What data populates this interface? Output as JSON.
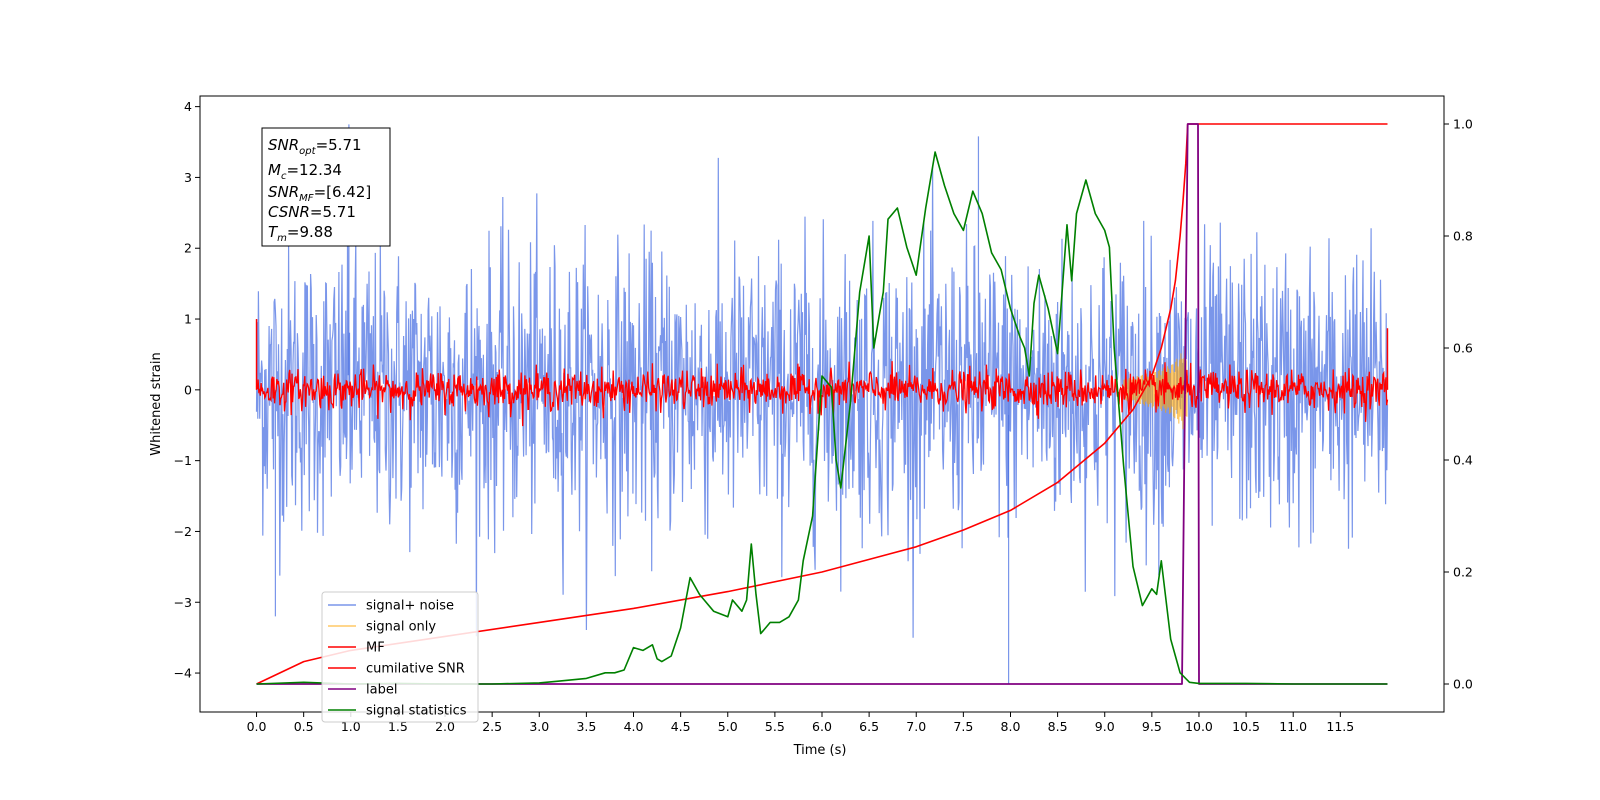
{
  "chart_data": {
    "type": "line",
    "xlabel": "Time (s)",
    "ylabel": "Whitened strain",
    "xlim": [
      -0.6,
      12.6
    ],
    "ylim": [
      -4.55,
      4.15
    ],
    "y2lim": [
      -0.05,
      1.05
    ],
    "x_ticks": [
      0.0,
      0.5,
      1.0,
      1.5,
      2.0,
      2.5,
      3.0,
      3.5,
      4.0,
      4.5,
      5.0,
      5.5,
      6.0,
      6.5,
      7.0,
      7.5,
      8.0,
      8.5,
      9.0,
      9.5,
      10.0,
      10.5,
      11.0,
      11.5
    ],
    "x_tick_labels": [
      "0.0",
      "0.5",
      "1.0",
      "1.5",
      "2.0",
      "2.5",
      "3.0",
      "3.5",
      "4.0",
      "4.5",
      "5.0",
      "5.5",
      "6.0",
      "6.5",
      "7.0",
      "7.5",
      "8.0",
      "8.5",
      "9.0",
      "9.5",
      "10.0",
      "10.5",
      "11.0",
      "11.5"
    ],
    "y_ticks": [
      -4,
      -3,
      -2,
      -1,
      0,
      1,
      2,
      3,
      4
    ],
    "y_tick_labels": [
      "−4",
      "−3",
      "−2",
      "−1",
      "0",
      "1",
      "2",
      "3",
      "4"
    ],
    "y2_ticks": [
      0.0,
      0.2,
      0.4,
      0.6,
      0.8,
      1.0
    ],
    "y2_tick_labels": [
      "0.0",
      "0.2",
      "0.4",
      "0.6",
      "0.8",
      "1.0"
    ],
    "annotation": {
      "snr_opt": "5.71",
      "mc": "12.34",
      "snr_mf": "[6.42]",
      "csnr": "5.71",
      "tm": "9.88"
    },
    "legend_position": "lower-left",
    "legend": [
      {
        "label": "signal+ noise",
        "color": "#4169e1"
      },
      {
        "label": "signal only",
        "color": "#ffa500"
      },
      {
        "label": "MF",
        "color": "#ff0000"
      },
      {
        "label": "cumilative SNR",
        "color": "#ff0000"
      },
      {
        "label": "label",
        "color": "#800080"
      },
      {
        "label": "signal statistics",
        "color": "#008000"
      }
    ],
    "series": [
      {
        "name": "signal+ noise",
        "color": "#4169e1",
        "axis": "left",
        "x_range": [
          0.0,
          12.0
        ],
        "typical_amplitude": 2.2,
        "peak_values": [
          {
            "x": 0.98,
            "y": 3.75
          },
          {
            "x": 7.66,
            "y": 3.58
          },
          {
            "x": 0.2,
            "y": -3.2
          },
          {
            "x": 7.98,
            "y": -4.15
          }
        ]
      },
      {
        "name": "signal only",
        "color": "#ffa500",
        "axis": "left",
        "x": [
          9.2,
          9.5,
          9.7,
          9.8,
          9.85,
          9.88
        ],
        "amplitude": [
          0.15,
          0.25,
          0.35,
          0.5,
          0.6,
          0.3
        ]
      },
      {
        "name": "MF",
        "color": "#ff0000",
        "axis": "left",
        "x_range": [
          0.0,
          12.0
        ],
        "typical_amplitude": 0.3,
        "peak_values": [
          {
            "x": 0.0,
            "y": 1.0
          },
          {
            "x": 12.0,
            "y": 0.87
          }
        ]
      },
      {
        "name": "cumilative SNR",
        "color": "#ff0000",
        "axis": "right",
        "x": [
          0.0,
          0.5,
          1.0,
          2.0,
          3.0,
          4.0,
          5.0,
          6.0,
          7.0,
          7.5,
          8.0,
          8.5,
          9.0,
          9.3,
          9.5,
          9.6,
          9.7,
          9.75,
          9.8,
          9.83,
          9.86,
          9.88,
          10.0,
          11.0,
          12.0
        ],
        "values": [
          0.0,
          0.04,
          0.06,
          0.085,
          0.11,
          0.135,
          0.165,
          0.2,
          0.245,
          0.275,
          0.31,
          0.36,
          0.43,
          0.49,
          0.55,
          0.6,
          0.67,
          0.72,
          0.8,
          0.86,
          0.93,
          1.0,
          1.0,
          1.0,
          1.0
        ]
      },
      {
        "name": "label",
        "color": "#800080",
        "axis": "right",
        "x": [
          0.0,
          9.82,
          9.88,
          9.99,
          10.0,
          12.0
        ],
        "values": [
          0.0,
          0.0,
          1.0,
          1.0,
          0.0,
          0.0
        ]
      },
      {
        "name": "signal statistics",
        "color": "#008000",
        "axis": "right",
        "x": [
          0.0,
          0.5,
          1.0,
          1.5,
          2.0,
          2.5,
          3.0,
          3.2,
          3.5,
          3.7,
          3.8,
          3.9,
          4.0,
          4.1,
          4.2,
          4.25,
          4.3,
          4.4,
          4.5,
          4.6,
          4.7,
          4.75,
          4.85,
          5.0,
          5.05,
          5.15,
          5.2,
          5.25,
          5.3,
          5.35,
          5.4,
          5.45,
          5.55,
          5.65,
          5.75,
          5.8,
          5.9,
          6.0,
          6.1,
          6.15,
          6.2,
          6.3,
          6.4,
          6.5,
          6.55,
          6.6,
          6.65,
          6.7,
          6.8,
          6.9,
          7.0,
          7.1,
          7.15,
          7.2,
          7.3,
          7.4,
          7.5,
          7.6,
          7.7,
          7.8,
          7.9,
          8.0,
          8.1,
          8.15,
          8.2,
          8.25,
          8.3,
          8.4,
          8.5,
          8.6,
          8.65,
          8.7,
          8.8,
          8.9,
          9.0,
          9.05,
          9.1,
          9.2,
          9.3,
          9.4,
          9.5,
          9.55,
          9.6,
          9.7,
          9.75,
          9.8,
          9.9,
          10.0,
          10.5,
          11.0,
          12.0
        ],
        "values": [
          0.0,
          0.003,
          0.0,
          0.001,
          0.0,
          0.0,
          0.002,
          0.005,
          0.01,
          0.02,
          0.02,
          0.025,
          0.065,
          0.06,
          0.07,
          0.045,
          0.04,
          0.05,
          0.1,
          0.19,
          0.16,
          0.15,
          0.13,
          0.12,
          0.15,
          0.13,
          0.15,
          0.25,
          0.16,
          0.09,
          0.1,
          0.11,
          0.11,
          0.12,
          0.15,
          0.22,
          0.3,
          0.55,
          0.53,
          0.4,
          0.35,
          0.5,
          0.7,
          0.8,
          0.6,
          0.65,
          0.7,
          0.83,
          0.85,
          0.78,
          0.73,
          0.85,
          0.9,
          0.95,
          0.89,
          0.84,
          0.81,
          0.88,
          0.84,
          0.77,
          0.74,
          0.67,
          0.62,
          0.6,
          0.55,
          0.68,
          0.73,
          0.67,
          0.59,
          0.82,
          0.72,
          0.84,
          0.9,
          0.84,
          0.81,
          0.78,
          0.6,
          0.39,
          0.21,
          0.14,
          0.17,
          0.16,
          0.22,
          0.08,
          0.05,
          0.02,
          0.003,
          0.001,
          0.001,
          0.0,
          0.0
        ]
      }
    ]
  }
}
